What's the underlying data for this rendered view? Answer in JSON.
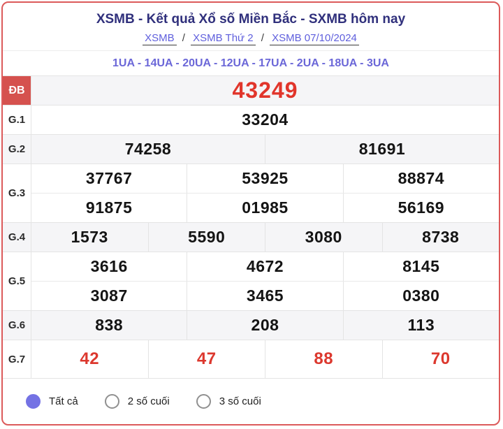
{
  "header": {
    "title": "XSMB - Kết quả Xổ số Miền Bắc - SXMB hôm nay",
    "breadcrumb": [
      {
        "label": "XSMB"
      },
      {
        "label": "XSMB Thứ 2"
      },
      {
        "label": "XSMB 07/10/2024"
      }
    ],
    "separator": "/",
    "station_codes": "1UA - 14UA - 20UA - 12UA - 17UA - 2UA - 18UA - 3UA"
  },
  "results": {
    "db": {
      "label": "ĐB",
      "value": "43249"
    },
    "g1": {
      "label": "G.1",
      "values": [
        "33204"
      ]
    },
    "g2": {
      "label": "G.2",
      "values": [
        "74258",
        "81691"
      ]
    },
    "g3": {
      "label": "G.3",
      "row1": [
        "37767",
        "53925",
        "88874"
      ],
      "row2": [
        "91875",
        "01985",
        "56169"
      ]
    },
    "g4": {
      "label": "G.4",
      "values": [
        "1573",
        "5590",
        "3080",
        "8738"
      ]
    },
    "g5": {
      "label": "G.5",
      "row1": [
        "3616",
        "4672",
        "8145"
      ],
      "row2": [
        "3087",
        "3465",
        "0380"
      ]
    },
    "g6": {
      "label": "G.6",
      "values": [
        "838",
        "208",
        "113"
      ]
    },
    "g7": {
      "label": "G.7",
      "values": [
        "42",
        "47",
        "88",
        "70"
      ]
    }
  },
  "filters": {
    "options": [
      {
        "label": "Tất cả",
        "selected": true
      },
      {
        "label": "2 số cuối",
        "selected": false
      },
      {
        "label": "3 số cuối",
        "selected": false
      }
    ]
  },
  "colors": {
    "card_border": "#dc5a5a",
    "title_navy": "#30307c",
    "link_purple": "#5f5fdd",
    "codes_purple": "#6b67d8",
    "db_label_bg": "#d5514e",
    "jackpot_red": "#e1352b",
    "g7_red": "#dc382e",
    "radio_selected": "#7472e4",
    "row_gray": "#f5f5f7"
  }
}
